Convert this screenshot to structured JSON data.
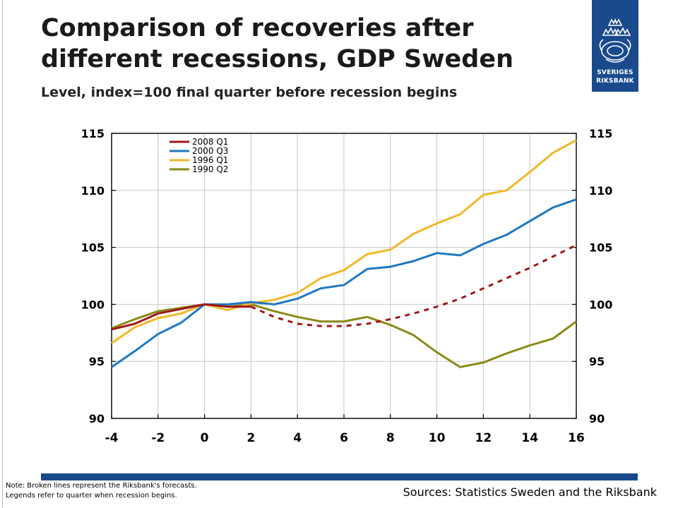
{
  "header": {
    "title": "Comparison of recoveries after different recessions, GDP Sweden",
    "subtitle": "Level, index=100 final quarter before recession begins"
  },
  "logo": {
    "line1": "SVERIGES",
    "line2": "RIKSBANK",
    "color": "#1a4a8c"
  },
  "footer": {
    "note_line1": "Note: Broken lines represent the Riksbank's forecasts.",
    "note_line2": "Legends refer to quarter when recession begins.",
    "sources": "Sources: Statistics Sweden and the Riksbank"
  },
  "chart_data": {
    "type": "line",
    "title": "Comparison of recoveries after different recessions, GDP Sweden",
    "subtitle": "Level, index=100 final quarter before recession begins",
    "xlim": [
      -4,
      16
    ],
    "ylim": [
      90,
      115
    ],
    "x_ticks": [
      -4,
      -2,
      0,
      2,
      4,
      6,
      8,
      10,
      12,
      14,
      16
    ],
    "y_ticks": [
      90,
      95,
      100,
      105,
      110,
      115
    ],
    "grid": true,
    "legend": "top-left",
    "series": [
      {
        "name": "2008 Q1",
        "color": "#a01818",
        "x": [
          -4,
          -3,
          -2,
          -1,
          0,
          1,
          2
        ],
        "values": [
          97.8,
          98.3,
          99.2,
          99.6,
          100.0,
          99.8,
          99.8
        ],
        "forecast_x": [
          2,
          3,
          4,
          5,
          6,
          7,
          8,
          9,
          10,
          11,
          12,
          13,
          14,
          15,
          16
        ],
        "forecast_values": [
          99.8,
          98.9,
          98.3,
          98.1,
          98.1,
          98.3,
          98.7,
          99.2,
          99.8,
          100.5,
          101.4,
          102.3,
          103.2,
          104.2,
          105.2
        ]
      },
      {
        "name": "2000 Q3",
        "color": "#1f78c0",
        "x": [
          -4,
          -3,
          -2,
          -1,
          0,
          1,
          2,
          3,
          4,
          5,
          6,
          7,
          8,
          9,
          10,
          11,
          12,
          13,
          14,
          15,
          16
        ],
        "values": [
          94.5,
          95.9,
          97.4,
          98.4,
          100.0,
          100.0,
          100.2,
          100.0,
          100.5,
          101.4,
          101.7,
          103.1,
          103.3,
          103.8,
          104.5,
          104.3,
          105.3,
          106.1,
          107.3,
          108.5,
          109.2
        ]
      },
      {
        "name": "1996 Q1",
        "color": "#f2b828",
        "x": [
          -4,
          -3,
          -2,
          -1,
          0,
          1,
          2,
          3,
          4,
          5,
          6,
          7,
          8,
          9,
          10,
          11,
          12,
          13,
          14,
          15,
          16
        ],
        "values": [
          96.6,
          98.0,
          98.8,
          99.2,
          100.0,
          99.5,
          100.1,
          100.4,
          101.0,
          102.3,
          103.0,
          104.4,
          104.8,
          106.2,
          107.1,
          107.9,
          109.6,
          110.0,
          111.6,
          113.3,
          114.4
        ]
      },
      {
        "name": "1990 Q2",
        "color": "#8a8a18",
        "x": [
          -4,
          -3,
          -2,
          -1,
          0,
          1,
          2,
          3,
          4,
          5,
          6,
          7,
          8,
          9,
          10,
          11,
          12,
          13,
          14,
          15,
          16
        ],
        "values": [
          97.9,
          98.7,
          99.4,
          99.7,
          100.0,
          99.8,
          100.0,
          99.4,
          98.9,
          98.5,
          98.5,
          98.9,
          98.2,
          97.3,
          95.8,
          94.5,
          94.9,
          95.7,
          96.4,
          97.0,
          98.5
        ]
      }
    ]
  }
}
